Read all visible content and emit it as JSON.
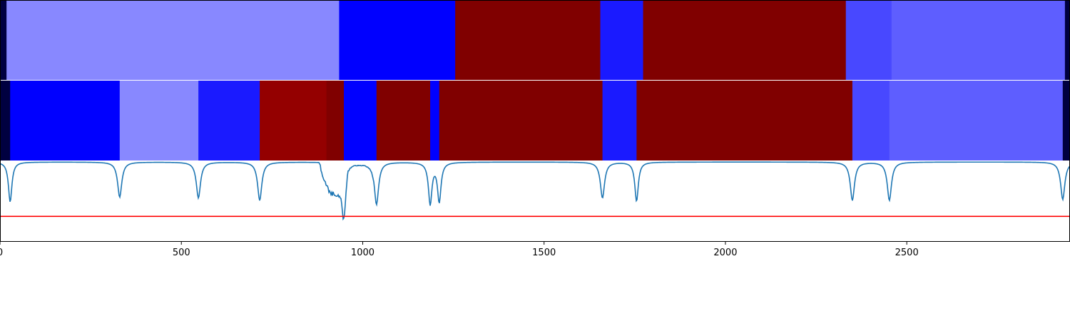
{
  "chart_data": {
    "type": "heatmap",
    "xlim": [
      0,
      2950
    ],
    "x_ticks": [
      {
        "value": 0,
        "label": "0"
      },
      {
        "value": 500,
        "label": "500"
      },
      {
        "value": 1000,
        "label": "1000"
      },
      {
        "value": 1500,
        "label": "1500"
      },
      {
        "value": 2000,
        "label": "2000"
      },
      {
        "value": 2500,
        "label": "2500"
      }
    ],
    "tracks": [
      {
        "kind": "segments",
        "segments": [
          {
            "start": 0,
            "end": 18,
            "color": "#000040"
          },
          {
            "start": 18,
            "end": 935,
            "color": "#8888ff"
          },
          {
            "start": 935,
            "end": 1255,
            "color": "#0000ff"
          },
          {
            "start": 1255,
            "end": 1655,
            "color": "#800000"
          },
          {
            "start": 1655,
            "end": 1773,
            "color": "#1a1aff"
          },
          {
            "start": 1773,
            "end": 2332,
            "color": "#800000"
          },
          {
            "start": 2332,
            "end": 2458,
            "color": "#4848ff"
          },
          {
            "start": 2458,
            "end": 2936,
            "color": "#5e5eff"
          },
          {
            "start": 2936,
            "end": 2950,
            "color": "#000040"
          }
        ]
      },
      {
        "kind": "segments",
        "segments": [
          {
            "start": 0,
            "end": 28,
            "color": "#000040"
          },
          {
            "start": 28,
            "end": 330,
            "color": "#0000ff"
          },
          {
            "start": 330,
            "end": 547,
            "color": "#8888ff"
          },
          {
            "start": 547,
            "end": 716,
            "color": "#1a1aff"
          },
          {
            "start": 716,
            "end": 900,
            "color": "#940000"
          },
          {
            "start": 900,
            "end": 948,
            "color": "#800000"
          },
          {
            "start": 948,
            "end": 1038,
            "color": "#0000ff"
          },
          {
            "start": 1038,
            "end": 1186,
            "color": "#800000"
          },
          {
            "start": 1186,
            "end": 1211,
            "color": "#0000ff"
          },
          {
            "start": 1211,
            "end": 1661,
            "color": "#800000"
          },
          {
            "start": 1661,
            "end": 1755,
            "color": "#1a1aff"
          },
          {
            "start": 1755,
            "end": 2350,
            "color": "#800000"
          },
          {
            "start": 2350,
            "end": 2452,
            "color": "#4848ff"
          },
          {
            "start": 2452,
            "end": 2930,
            "color": "#5e5eff"
          },
          {
            "start": 2930,
            "end": 2950,
            "color": "#000040"
          }
        ]
      },
      {
        "kind": "line",
        "ylim": [
          0,
          1
        ],
        "line_color": "#1f77b4",
        "threshold": 0.31,
        "threshold_color": "#ff0000",
        "dips": [
          {
            "x": 28,
            "depth": 0.5,
            "width": 10
          },
          {
            "x": 330,
            "depth": 0.44,
            "width": 12
          },
          {
            "x": 547,
            "depth": 0.45,
            "width": 12
          },
          {
            "x": 716,
            "depth": 0.48,
            "width": 12
          },
          {
            "x": 948,
            "depth": 0.53,
            "width": 10
          },
          {
            "x": 1038,
            "depth": 0.53,
            "width": 12
          },
          {
            "x": 1186,
            "depth": 0.52,
            "width": 10
          },
          {
            "x": 1211,
            "depth": 0.49,
            "width": 10
          },
          {
            "x": 1661,
            "depth": 0.45,
            "width": 12
          },
          {
            "x": 1755,
            "depth": 0.49,
            "width": 10
          },
          {
            "x": 2350,
            "depth": 0.48,
            "width": 12
          },
          {
            "x": 2452,
            "depth": 0.48,
            "width": 12
          },
          {
            "x": 2930,
            "depth": 0.47,
            "width": 12
          }
        ],
        "noisy_region": {
          "start": 880,
          "end": 960,
          "depth": 0.38
        }
      }
    ]
  }
}
